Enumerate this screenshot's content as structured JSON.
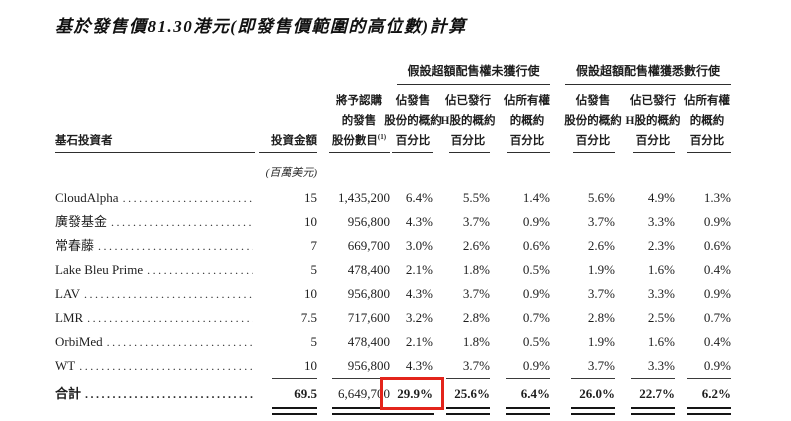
{
  "page": {
    "title": "基於發售價81.30港元(即發售價範圍的高位數)計算"
  },
  "table": {
    "group_headers": {
      "no_exercise": "假設超額配售權未獲行使",
      "full_exercise": "假設超額配售權獲悉數行使"
    },
    "headers": {
      "investor": "基石投資者",
      "amount": "投資金額",
      "amount_unit": "(百萬美元)",
      "shares": [
        "將予認購",
        "的發售",
        "股份數目"
      ],
      "shares_note": "(1)",
      "pct_offer": [
        "佔發售",
        "股份的概約",
        "百分比"
      ],
      "pct_issued_h": [
        "佔已發行",
        "H股的概約",
        "百分比"
      ],
      "pct_ownership": [
        "佔所有權",
        "的概約",
        "百分比"
      ]
    },
    "rows": [
      {
        "name": "CloudAlpha",
        "amount": "15",
        "shares": "1,435,200",
        "p1": "6.4%",
        "p2": "5.5%",
        "p3": "1.4%",
        "p4": "5.6%",
        "p5": "4.9%",
        "p6": "1.3%"
      },
      {
        "name": "廣發基金",
        "amount": "10",
        "shares": "956,800",
        "p1": "4.3%",
        "p2": "3.7%",
        "p3": "0.9%",
        "p4": "3.7%",
        "p5": "3.3%",
        "p6": "0.9%"
      },
      {
        "name": "常春藤",
        "amount": "7",
        "shares": "669,700",
        "p1": "3.0%",
        "p2": "2.6%",
        "p3": "0.6%",
        "p4": "2.6%",
        "p5": "2.3%",
        "p6": "0.6%"
      },
      {
        "name": "Lake Bleu Prime",
        "amount": "5",
        "shares": "478,400",
        "p1": "2.1%",
        "p2": "1.8%",
        "p3": "0.5%",
        "p4": "1.9%",
        "p5": "1.6%",
        "p6": "0.4%"
      },
      {
        "name": "LAV",
        "amount": "10",
        "shares": "956,800",
        "p1": "4.3%",
        "p2": "3.7%",
        "p3": "0.9%",
        "p4": "3.7%",
        "p5": "3.3%",
        "p6": "0.9%"
      },
      {
        "name": "LMR",
        "amount": "7.5",
        "shares": "717,600",
        "p1": "3.2%",
        "p2": "2.8%",
        "p3": "0.7%",
        "p4": "2.8%",
        "p5": "2.5%",
        "p6": "0.7%"
      },
      {
        "name": "OrbiMed",
        "amount": "5",
        "shares": "478,400",
        "p1": "2.1%",
        "p2": "1.8%",
        "p3": "0.5%",
        "p4": "1.9%",
        "p5": "1.6%",
        "p6": "0.4%"
      },
      {
        "name": "WT",
        "amount": "10",
        "shares": "956,800",
        "p1": "4.3%",
        "p2": "3.7%",
        "p3": "0.9%",
        "p4": "3.7%",
        "p5": "3.3%",
        "p6": "0.9%"
      }
    ],
    "total": {
      "name": "合計",
      "amount": "69.5",
      "shares": "6,649,700",
      "p1": "29.9%",
      "p2": "25.6%",
      "p3": "6.4%",
      "p4": "26.0%",
      "p5": "22.7%",
      "p6": "6.2%"
    }
  },
  "highlight": {
    "highlighted_value": "29.9%",
    "box_color": "#e3241b"
  }
}
